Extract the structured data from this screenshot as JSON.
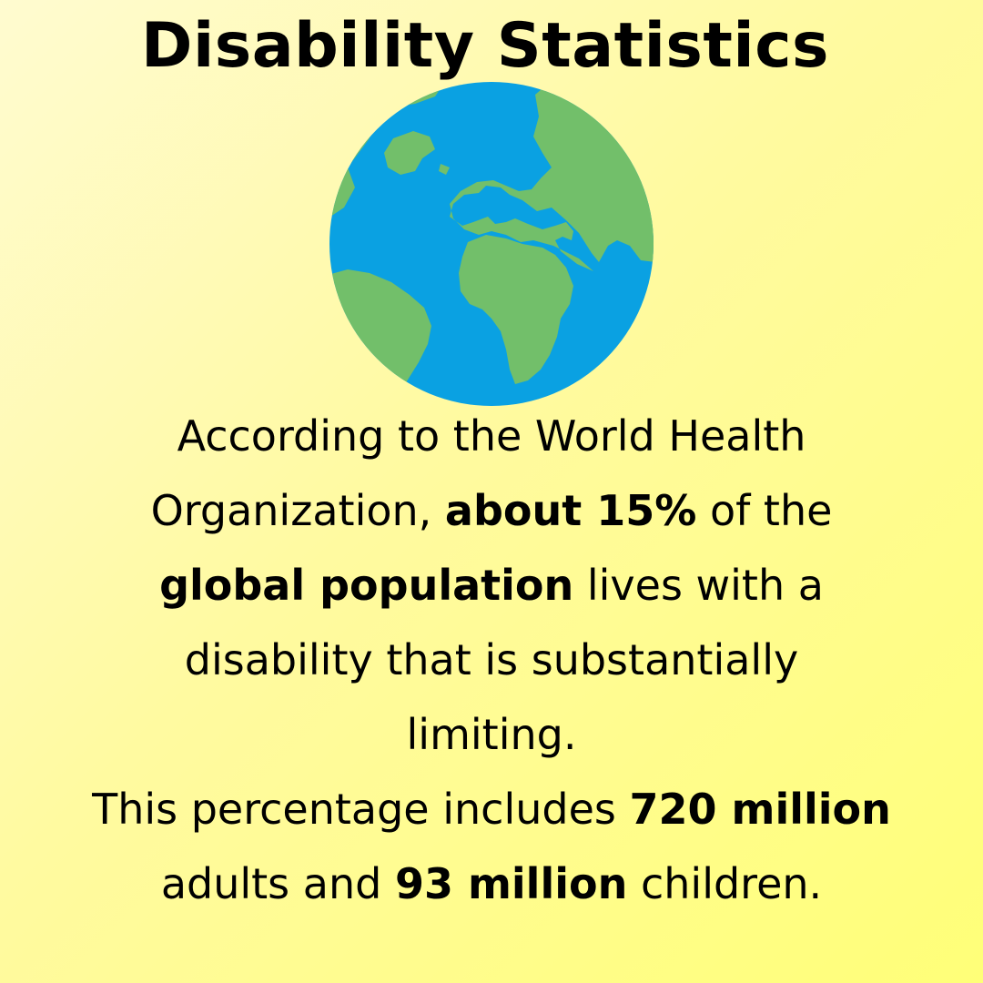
{
  "title": "Disability Statistics",
  "colors": {
    "background": "#fffaa0",
    "ocean": "#0aa1e2",
    "land": "#72bf6a",
    "text": "#000000"
  },
  "globe": {
    "icon": "earth-globe-icon"
  },
  "paragraph": {
    "line1": "According to the World Health",
    "line2_a": "Organization,  ",
    "line2_b": "about 15%",
    "line2_c": " of the",
    "line3_a": "global population",
    "line3_b": " lives with a",
    "line4": "disability that is substantially",
    "line5": "limiting.",
    "line6_a": "This percentage includes ",
    "line6_b": "720 million",
    "line7_a": "adults and ",
    "line7_b": "93 million",
    "line7_c": " children."
  }
}
